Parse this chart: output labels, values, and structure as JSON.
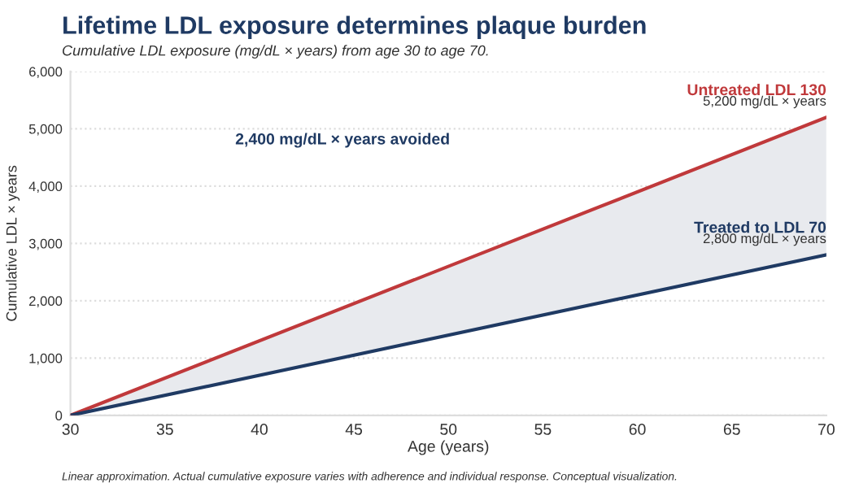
{
  "chart_data": {
    "type": "line",
    "title": "Lifetime LDL exposure determines plaque burden",
    "subtitle": "Cumulative LDL exposure (mg/dL × years) from age 30 to age 70.",
    "xlabel": "Age (years)",
    "ylabel": "Cumulative LDL × years",
    "x": [
      30,
      70
    ],
    "series": [
      {
        "name": "Untreated LDL 130",
        "color": "#c0393b",
        "values": [
          0,
          5200
        ],
        "lower": [
          0,
          2800
        ],
        "upper": [
          0,
          5200
        ]
      },
      {
        "name": "Treated to LDL 70",
        "color": "#1f3a63",
        "values": [
          0,
          2800
        ]
      }
    ],
    "annotations": [
      {
        "text": "5,200 mg/dL × years",
        "x": 70,
        "y": 5200
      },
      {
        "text": "2,800 mg/dL × years",
        "x": 70,
        "y": 2800
      },
      "2,400 mg/dL × years avoided",
      "Linear approximation. Actual cumulative exposure varies with adherence and individual response. Conceptual visualization."
    ],
    "xlim": [
      30,
      70
    ],
    "xticks": [
      30,
      35,
      40,
      45,
      50,
      55,
      60,
      65,
      70
    ],
    "ylim": [
      0,
      6000
    ],
    "yticks": [
      {
        "value": 0,
        "label": "0"
      },
      {
        "value": 1000,
        "label": "1,000"
      },
      {
        "value": 2000,
        "label": "2,000"
      },
      {
        "value": 3000,
        "label": "3,000"
      },
      {
        "value": 4000,
        "label": "4,000"
      },
      {
        "value": 5000,
        "label": "5,000"
      },
      {
        "value": 6000,
        "label": "6,000"
      }
    ],
    "grid": "y",
    "legend": false,
    "marker": "none",
    "line_style": "solid"
  }
}
